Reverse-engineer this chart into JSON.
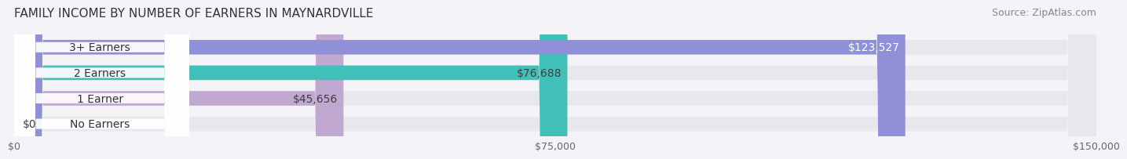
{
  "title": "FAMILY INCOME BY NUMBER OF EARNERS IN MAYNARDVILLE",
  "source": "Source: ZipAtlas.com",
  "categories": [
    "No Earners",
    "1 Earner",
    "2 Earners",
    "3+ Earners"
  ],
  "values": [
    0,
    45656,
    76688,
    123527
  ],
  "bar_colors": [
    "#a8c0e0",
    "#c0a8d0",
    "#40c0b8",
    "#9090d8"
  ],
  "bar_bg_color": "#e8e8ec",
  "label_colors": [
    "#404040",
    "#404040",
    "#404040",
    "#ffffff"
  ],
  "label_values": [
    "$0",
    "$45,656",
    "$76,688",
    "$123,527"
  ],
  "xmax": 150000,
  "xticks": [
    0,
    75000,
    150000
  ],
  "xtick_labels": [
    "$0",
    "$75,000",
    "$150,000"
  ],
  "bg_color": "#f4f4f8",
  "title_fontsize": 11,
  "source_fontsize": 9,
  "bar_label_fontsize": 10,
  "category_fontsize": 10
}
